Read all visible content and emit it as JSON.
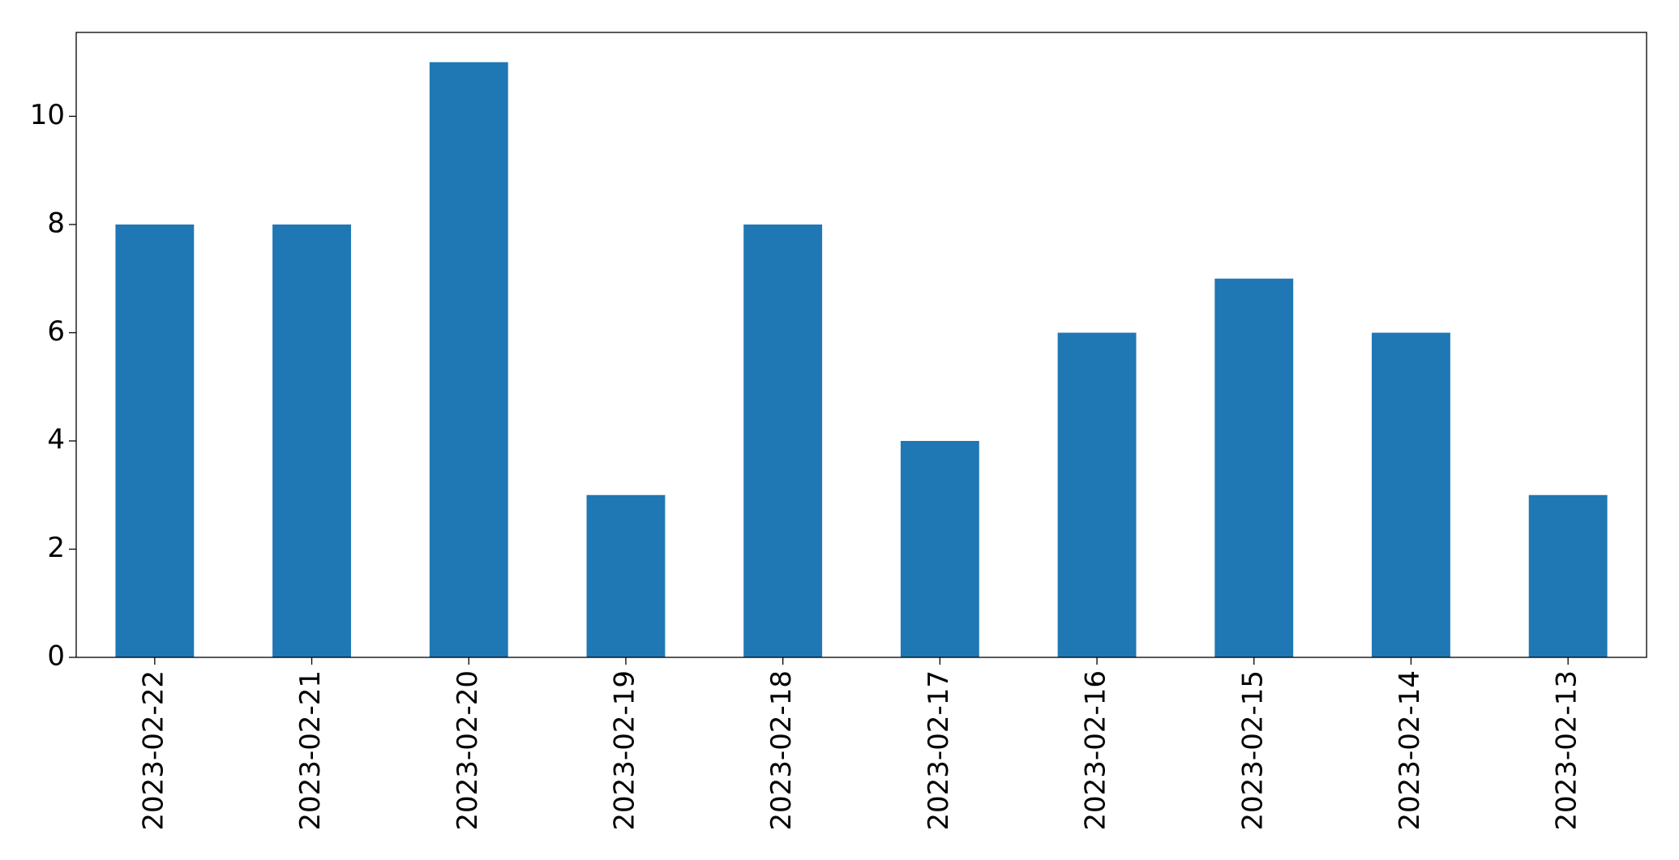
{
  "chart_data": {
    "type": "bar",
    "categories": [
      "2023-02-22",
      "2023-02-21",
      "2023-02-20",
      "2023-02-19",
      "2023-02-18",
      "2023-02-17",
      "2023-02-16",
      "2023-02-15",
      "2023-02-14",
      "2023-02-13"
    ],
    "values": [
      8,
      8,
      11,
      3,
      8,
      4,
      6,
      7,
      6,
      3
    ],
    "color": "#1f77b4",
    "ylim": [
      0,
      11.55
    ],
    "yticks": [
      0,
      2,
      4,
      6,
      8,
      10
    ],
    "grid": false
  }
}
